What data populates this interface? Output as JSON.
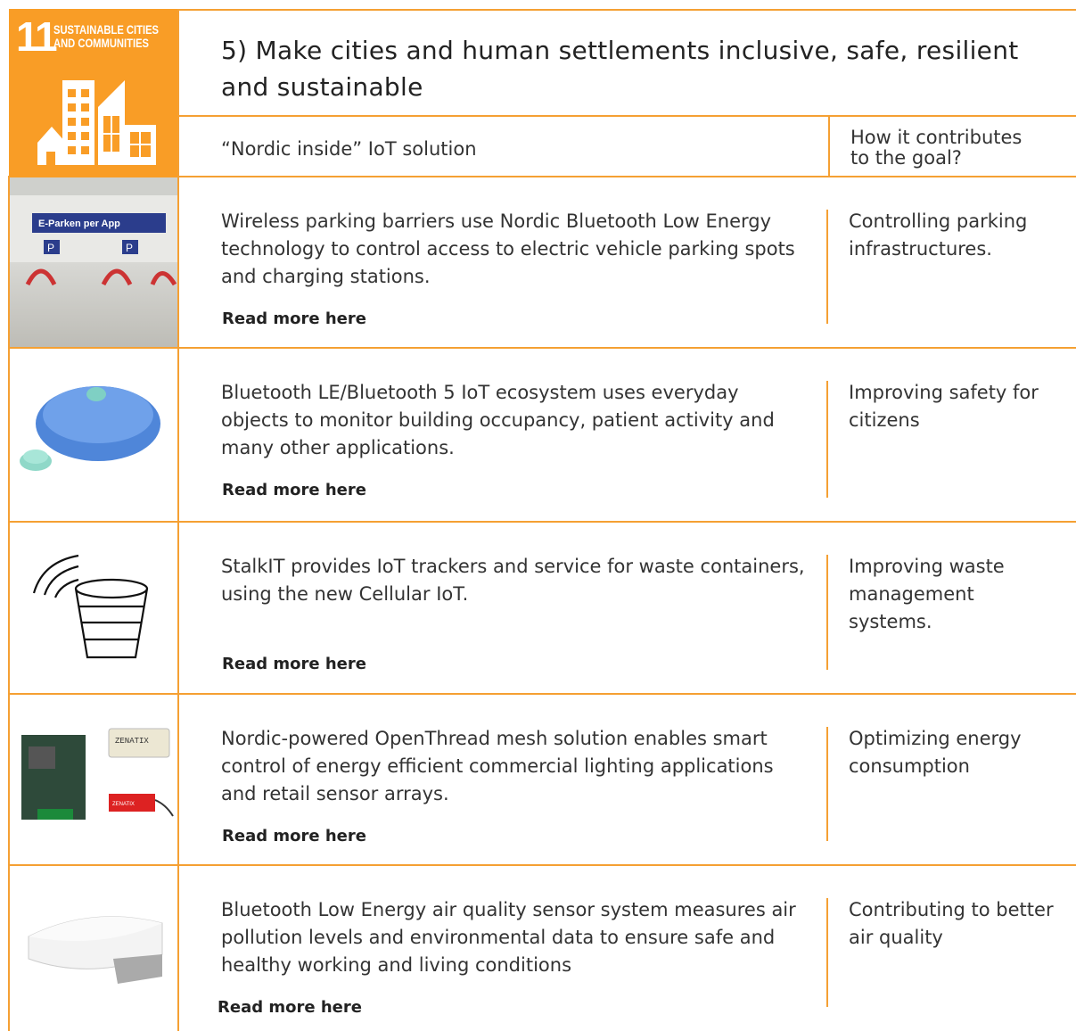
{
  "header": {
    "sdg_number": "11",
    "sdg_label": [
      "SUSTAINABLE CITIES",
      "AND COMMUNITIES"
    ],
    "title": "5) Make cities and human settlements inclusive, safe, resilient and sustainable"
  },
  "columns": [
    "“Nordic inside” IoT solution",
    "How it contributes to the goal?"
  ],
  "image_texts": {
    "parking_sign": "E-Parken per App",
    "parking_p": "P",
    "zenatix": "ZENATIX"
  },
  "rows": [
    {
      "description": "Wireless parking barriers use Nordic Bluetooth Low Energy technology to control access to electric vehicle parking spots and charging stations.",
      "link": "Read more here",
      "contribution": "Controlling parking infrastructures."
    },
    {
      "description": "Bluetooth LE/Bluetooth 5 IoT ecosystem uses everyday objects to monitor building occupancy, patient activity and many other applications.",
      "link": "Read more here",
      "contribution": "Improving safety for citizens"
    },
    {
      "description": "StalkIT provides IoT trackers and service for waste containers, using the new Cellular IoT.",
      "link": "Read more here",
      "contribution": "Improving waste management systems."
    },
    {
      "description": "Nordic-powered OpenThread mesh solution enables smart control of energy efficient commercial lighting applications and retail sensor arrays.",
      "link": "Read more here",
      "contribution": "Optimizing energy consumption"
    },
    {
      "description": "Bluetooth Low Energy air quality sensor system measures air pollution levels and environmental data to ensure safe and healthy working and living conditions",
      "link": "Read more here",
      "contribution": "Contributing to better air quality"
    }
  ]
}
